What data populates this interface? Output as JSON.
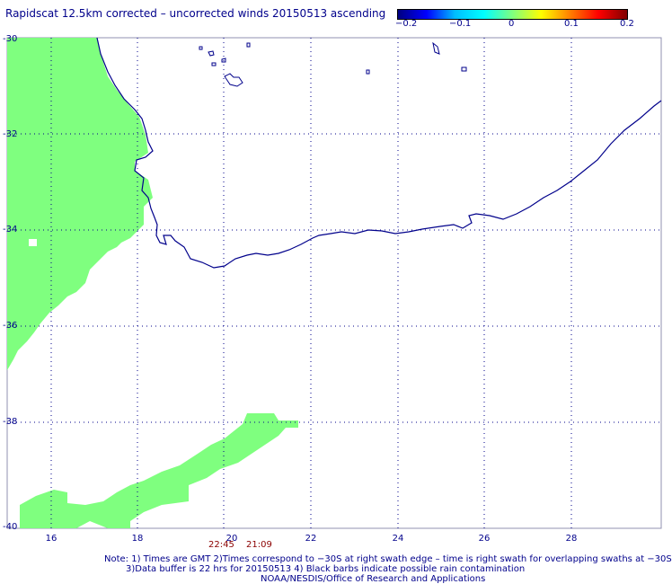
{
  "title": "Rapidscat 12.5km corrected – uncorrected winds 20150513 ascending",
  "colorbar": {
    "ticks": [
      "−0.2",
      "−0.1",
      "0",
      "0.1",
      "0.2"
    ],
    "colors": [
      "#000080",
      "#0000ff",
      "#00bfff",
      "#00ffff",
      "#7fff7f",
      "#ffff00",
      "#ff8000",
      "#ff0000",
      "#800000"
    ],
    "range": [
      -0.2,
      0.2
    ]
  },
  "map": {
    "lon_range": [
      15,
      30
    ],
    "lat_range": [
      -40,
      -30
    ],
    "lat_labels": [
      "-30",
      "-32",
      "-34",
      "-36",
      "-38",
      "-40"
    ],
    "lon_labels": [
      "16",
      "18",
      "20",
      "22",
      "24",
      "26",
      "28"
    ],
    "grid": "dotted",
    "swath_color": "#7fff7f",
    "coast_color": "#00008b"
  },
  "swath_times": [
    "22:45",
    "21:09"
  ],
  "notes": [
    "Note: 1) Times are GMT 2)Times correspond to −30S at right swath edge – time is right swath for overlapping swaths at −30S",
    "3)Data buffer is 22 hrs for 20150513 4) Black barbs indicate possible rain contamination",
    "NOAA/NESDIS/Office of Research and Applications"
  ]
}
